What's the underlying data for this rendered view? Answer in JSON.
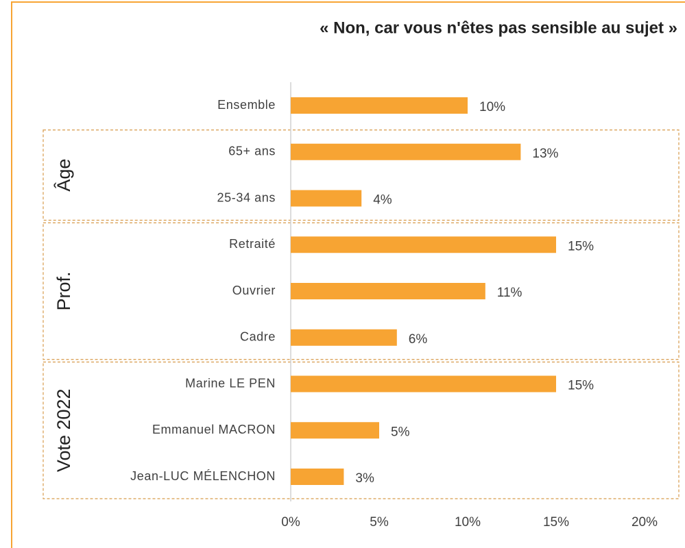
{
  "chart_data": {
    "type": "barh",
    "title": "« Non, car vous n'êtes pas sensible au sujet »",
    "categories": [
      "Ensemble",
      "65+ ans",
      "25-34 ans",
      "Retraité",
      "Ouvrier",
      "Cadre",
      "Marine LE PEN",
      "Emmanuel MACRON",
      "Jean-LUC MÉLENCHON"
    ],
    "groups": [
      null,
      "Âge",
      "Âge",
      "Prof.",
      "Prof.",
      "Prof.",
      "Vote 2022",
      "Vote 2022",
      "Vote 2022"
    ],
    "values": [
      10,
      13,
      4,
      15,
      11,
      6,
      15,
      5,
      3
    ],
    "value_labels": [
      "10%",
      "13%",
      "4%",
      "15%",
      "11%",
      "6%",
      "15%",
      "5%",
      "3%"
    ],
    "color": "#f7a433",
    "xlim": [
      0,
      20
    ],
    "xticks": [
      {
        "value": 0,
        "label": "0%"
      },
      {
        "value": 5,
        "label": "5%"
      },
      {
        "value": 10,
        "label": "10%"
      },
      {
        "value": 15,
        "label": "15%"
      },
      {
        "value": 20,
        "label": "20%"
      }
    ]
  }
}
